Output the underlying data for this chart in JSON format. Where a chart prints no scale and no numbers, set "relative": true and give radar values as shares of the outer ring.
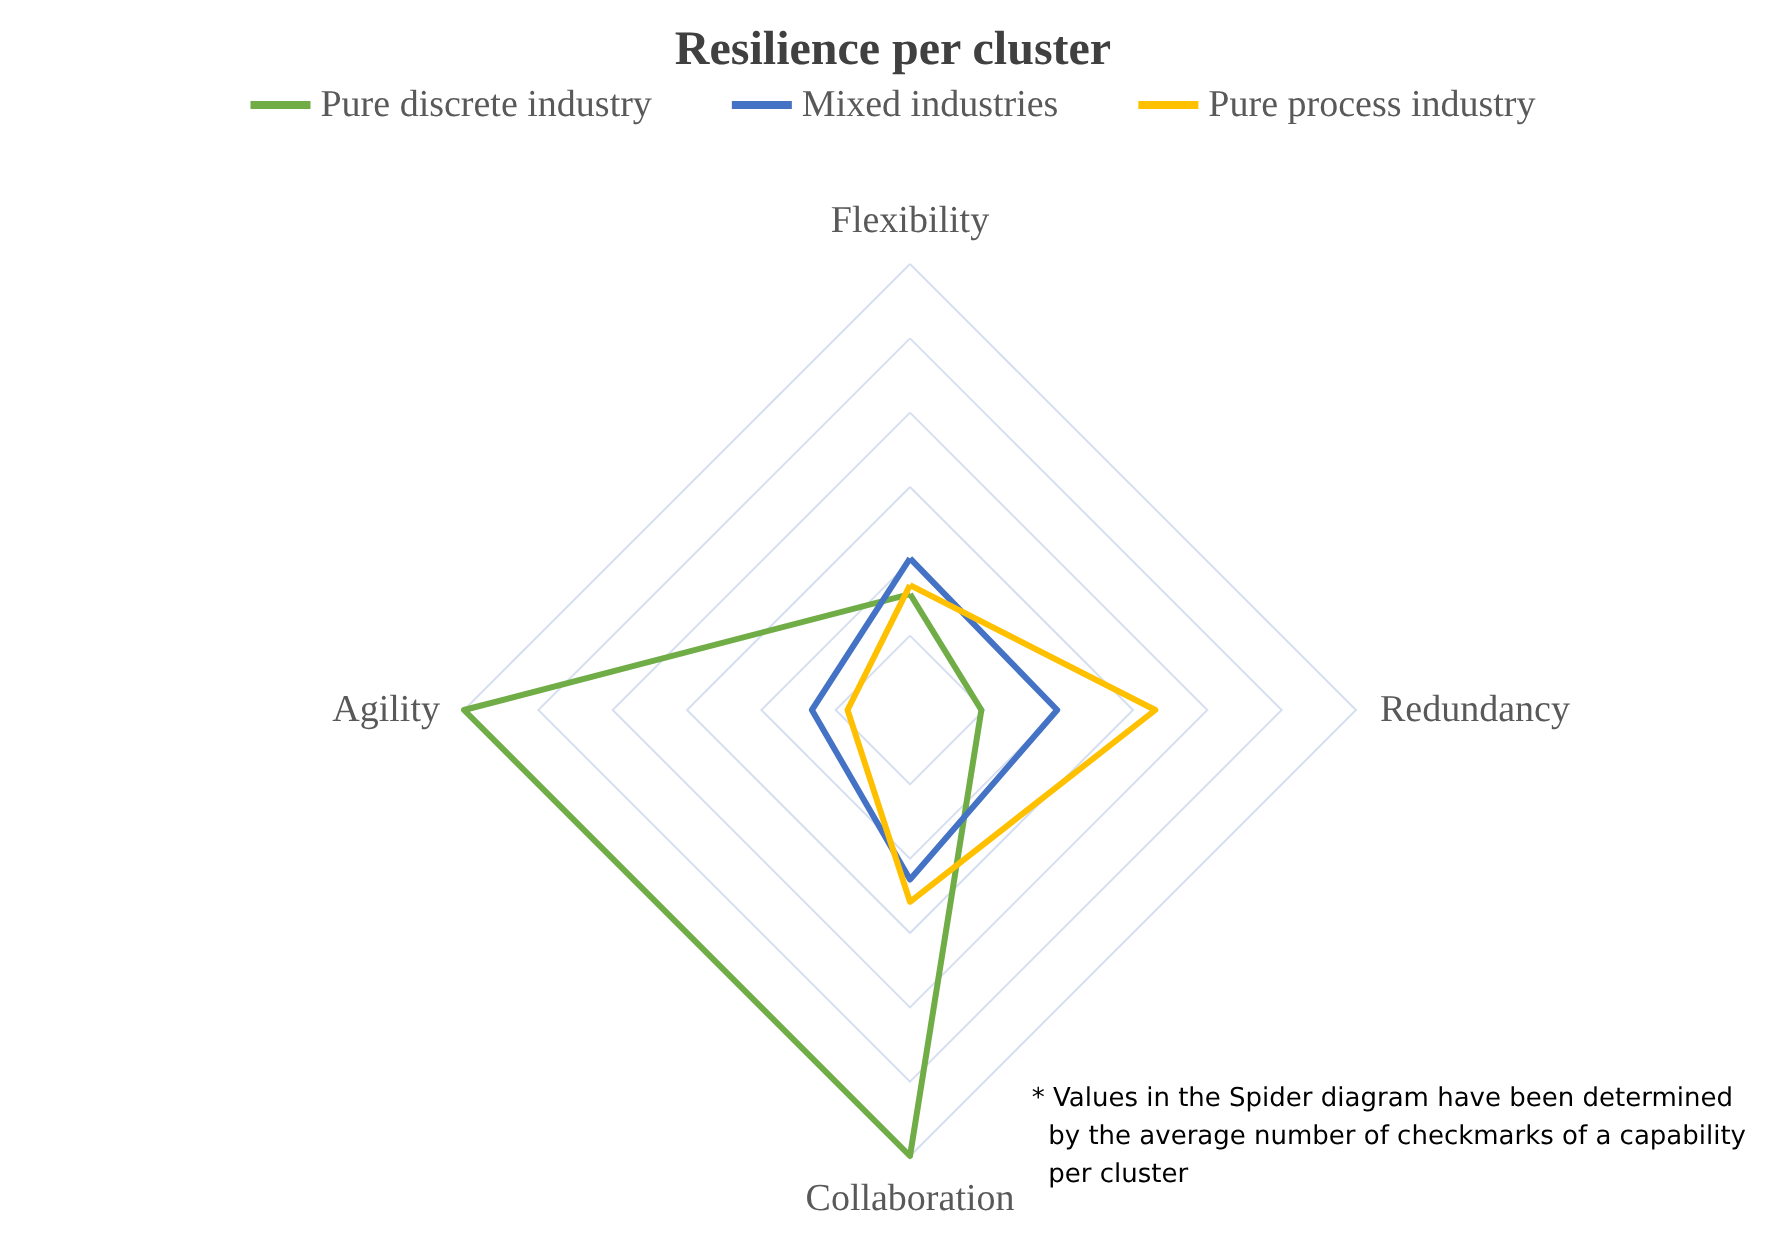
{
  "chart_data": {
    "type": "radar",
    "title": "Resilience per cluster",
    "relative": true,
    "categories": [
      "Flexibility",
      "Redundancy",
      "Collaboration",
      "Agility"
    ],
    "series": [
      {
        "name": "Pure discrete industry",
        "color": "#70ad47",
        "values": [
          0.26,
          0.16,
          1,
          1
        ]
      },
      {
        "name": "Mixed industries",
        "color": "#4472c4",
        "values": [
          0.34,
          0.33,
          0.38,
          0.22
        ]
      },
      {
        "name": "Pure process industry",
        "color": "#ffc000",
        "values": [
          0.28,
          0.55,
          0.43,
          0.14
        ]
      }
    ],
    "legend": "top",
    "marker": "none",
    "line_style": "solid",
    "annotations": [
      "* Values in the Spider diagram have been determined by the average number of checkmarks of a capability per cluster"
    ]
  }
}
